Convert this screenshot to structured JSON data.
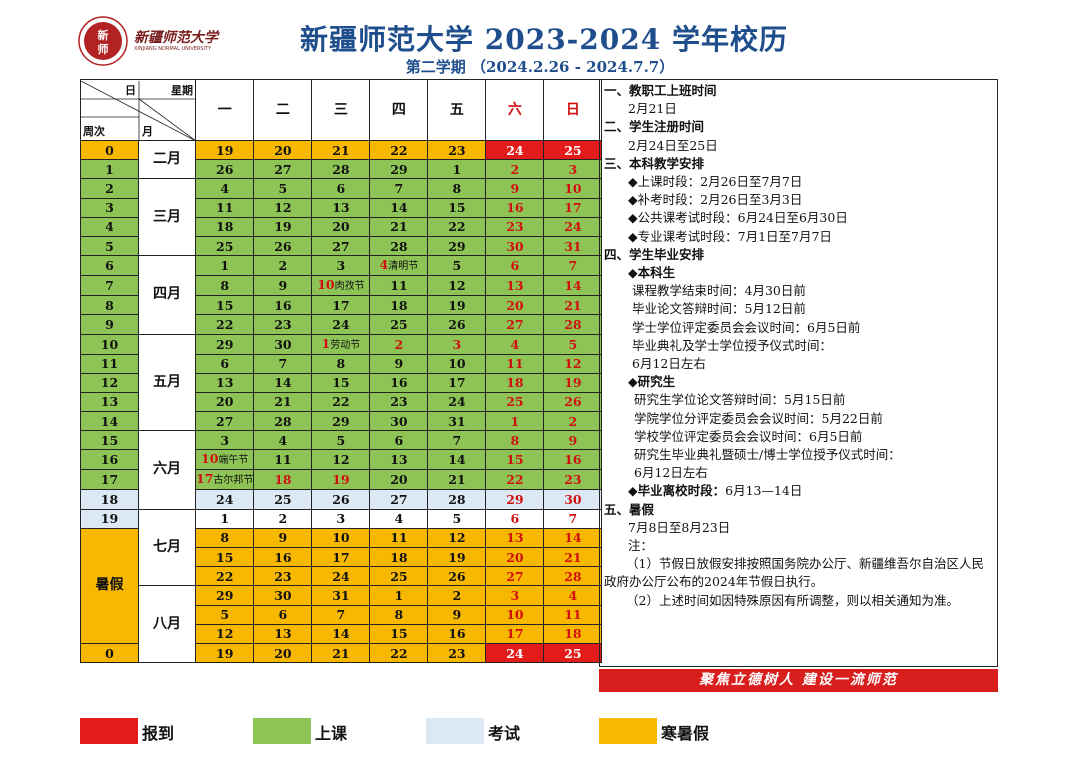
{
  "header": {
    "title": "新疆师范大学 2023-2024  学年校历",
    "subtitle": "第二学期 （2024.2.26 - 2024.7.7）",
    "logo_char": "新师",
    "logo_name": "新疆师范大学",
    "logo_name_en": "XINJIANG NORMAL UNIVERSITY"
  },
  "table": {
    "corner": {
      "day": "日",
      "weekday": "星期",
      "week": "周次",
      "month": "月"
    },
    "weekdays": [
      "一",
      "二",
      "三",
      "四",
      "五",
      "六",
      "日"
    ],
    "months": {
      "feb": "二月",
      "mar": "三月",
      "apr": "四月",
      "may": "五月",
      "jun": "六月",
      "jul": "七月",
      "aug": "八月"
    },
    "summer_label": "暑假",
    "weeks": [
      {
        "week": "0",
        "days": [
          "19",
          "20",
          "21",
          "22",
          "23",
          "24",
          "25"
        ]
      },
      {
        "week": "1",
        "days": [
          "26",
          "27",
          "28",
          "29",
          "1",
          "2",
          "3"
        ]
      },
      {
        "week": "2",
        "days": [
          "4",
          "5",
          "6",
          "7",
          "8",
          "9",
          "10"
        ]
      },
      {
        "week": "3",
        "days": [
          "11",
          "12",
          "13",
          "14",
          "15",
          "16",
          "17"
        ]
      },
      {
        "week": "4",
        "days": [
          "18",
          "19",
          "20",
          "21",
          "22",
          "23",
          "24"
        ]
      },
      {
        "week": "5",
        "days": [
          "25",
          "26",
          "27",
          "28",
          "29",
          "30",
          "31"
        ]
      },
      {
        "week": "6",
        "days": [
          "1",
          "2",
          "3",
          "4",
          "5",
          "6",
          "7"
        ]
      },
      {
        "week": "7",
        "days": [
          "8",
          "9",
          "10",
          "11",
          "12",
          "13",
          "14"
        ]
      },
      {
        "week": "8",
        "days": [
          "15",
          "16",
          "17",
          "18",
          "19",
          "20",
          "21"
        ]
      },
      {
        "week": "9",
        "days": [
          "22",
          "23",
          "24",
          "25",
          "26",
          "27",
          "28"
        ]
      },
      {
        "week": "10",
        "days": [
          "29",
          "30",
          "1",
          "2",
          "3",
          "4",
          "5"
        ]
      },
      {
        "week": "11",
        "days": [
          "6",
          "7",
          "8",
          "9",
          "10",
          "11",
          "12"
        ]
      },
      {
        "week": "12",
        "days": [
          "13",
          "14",
          "15",
          "16",
          "17",
          "18",
          "19"
        ]
      },
      {
        "week": "13",
        "days": [
          "20",
          "21",
          "22",
          "23",
          "24",
          "25",
          "26"
        ]
      },
      {
        "week": "14",
        "days": [
          "27",
          "28",
          "29",
          "30",
          "31",
          "1",
          "2"
        ]
      },
      {
        "week": "15",
        "days": [
          "3",
          "4",
          "5",
          "6",
          "7",
          "8",
          "9"
        ]
      },
      {
        "week": "16",
        "days": [
          "10",
          "11",
          "12",
          "13",
          "14",
          "15",
          "16"
        ]
      },
      {
        "week": "17",
        "days": [
          "17",
          "18",
          "19",
          "20",
          "21",
          "22",
          "23"
        ]
      },
      {
        "week": "18",
        "days": [
          "24",
          "25",
          "26",
          "27",
          "28",
          "29",
          "30"
        ]
      },
      {
        "week": "19",
        "days": [
          "1",
          "2",
          "3",
          "4",
          "5",
          "6",
          "7"
        ]
      },
      {
        "week": "",
        "days": [
          "8",
          "9",
          "10",
          "11",
          "12",
          "13",
          "14"
        ]
      },
      {
        "week": "",
        "days": [
          "15",
          "16",
          "17",
          "18",
          "19",
          "20",
          "21"
        ]
      },
      {
        "week": "",
        "days": [
          "22",
          "23",
          "24",
          "25",
          "26",
          "27",
          "28"
        ]
      },
      {
        "week": "",
        "days": [
          "29",
          "30",
          "31",
          "1",
          "2",
          "3",
          "4"
        ]
      },
      {
        "week": "",
        "days": [
          "5",
          "6",
          "7",
          "8",
          "9",
          "10",
          "11"
        ]
      },
      {
        "week": "",
        "days": [
          "12",
          "13",
          "14",
          "15",
          "16",
          "17",
          "18"
        ]
      },
      {
        "week": "0",
        "days": [
          "19",
          "20",
          "21",
          "22",
          "23",
          "24",
          "25"
        ]
      }
    ],
    "holidays": {
      "qingming": "清明节",
      "rouzi": "肉孜节",
      "labor": "劳动节",
      "duanwu": "端午节",
      "gurban": "古尔邦节"
    }
  },
  "notes": {
    "s1_title": "一、教职工上班时间",
    "s1_text": "2月21日",
    "s2_title": "二、学生注册时间",
    "s2_text": "2月24日至25日",
    "s3_title": "三、本科教学安排",
    "s3_items": [
      "◆上课时段：2月26日至7月7日",
      "◆补考时段：2月26日至3月3日",
      "◆公共课考试时段：6月24日至6月30日",
      "◆专业课考试时段：7月1日至7月7日"
    ],
    "s4_title": "四、学生毕业安排",
    "s4_ug_title": "◆本科生",
    "s4_ug_items": [
      "课程教学结束时间：4月30日前",
      "毕业论文答辩时间：5月12日前",
      "学士学位评定委员会会议时间：6月5日前",
      "毕业典礼及学士学位授予仪式时间：",
      "6月12日左右"
    ],
    "s4_pg_title": "◆研究生",
    "s4_pg_items": [
      "研究生学位论文答辩时间：5月15日前",
      "学院学位分评定委员会会议时间：5月22日前",
      "学校学位评定委员会会议时间：6月5日前",
      "研究生毕业典礼暨硕士/博士学位授予仪式时间：",
      " 6月12日左右"
    ],
    "s4_leave_label": "◆毕业离校时段：",
    "s4_leave_text": "6月13—14日",
    "s5_title": "五、暑假",
    "s5_text": "7月8日至8月23日",
    "note_label": "注：",
    "note1": "（1）节假日放假安排按照国务院办公厅、新疆维吾尔自治区人民政府办公厅公布的2024年节假日执行。",
    "note2": "（2）上述时间如因特殊原因有所调整，则以相关通知为准。"
  },
  "banner": "聚焦立德树人    建设一流师范",
  "legend": [
    {
      "label": "报到",
      "color": "#e31b1b"
    },
    {
      "label": "上课",
      "color": "#8dc455"
    },
    {
      "label": "考试",
      "color": "#dce9f5"
    },
    {
      "label": "寒暑假",
      "color": "#f8b800"
    }
  ]
}
